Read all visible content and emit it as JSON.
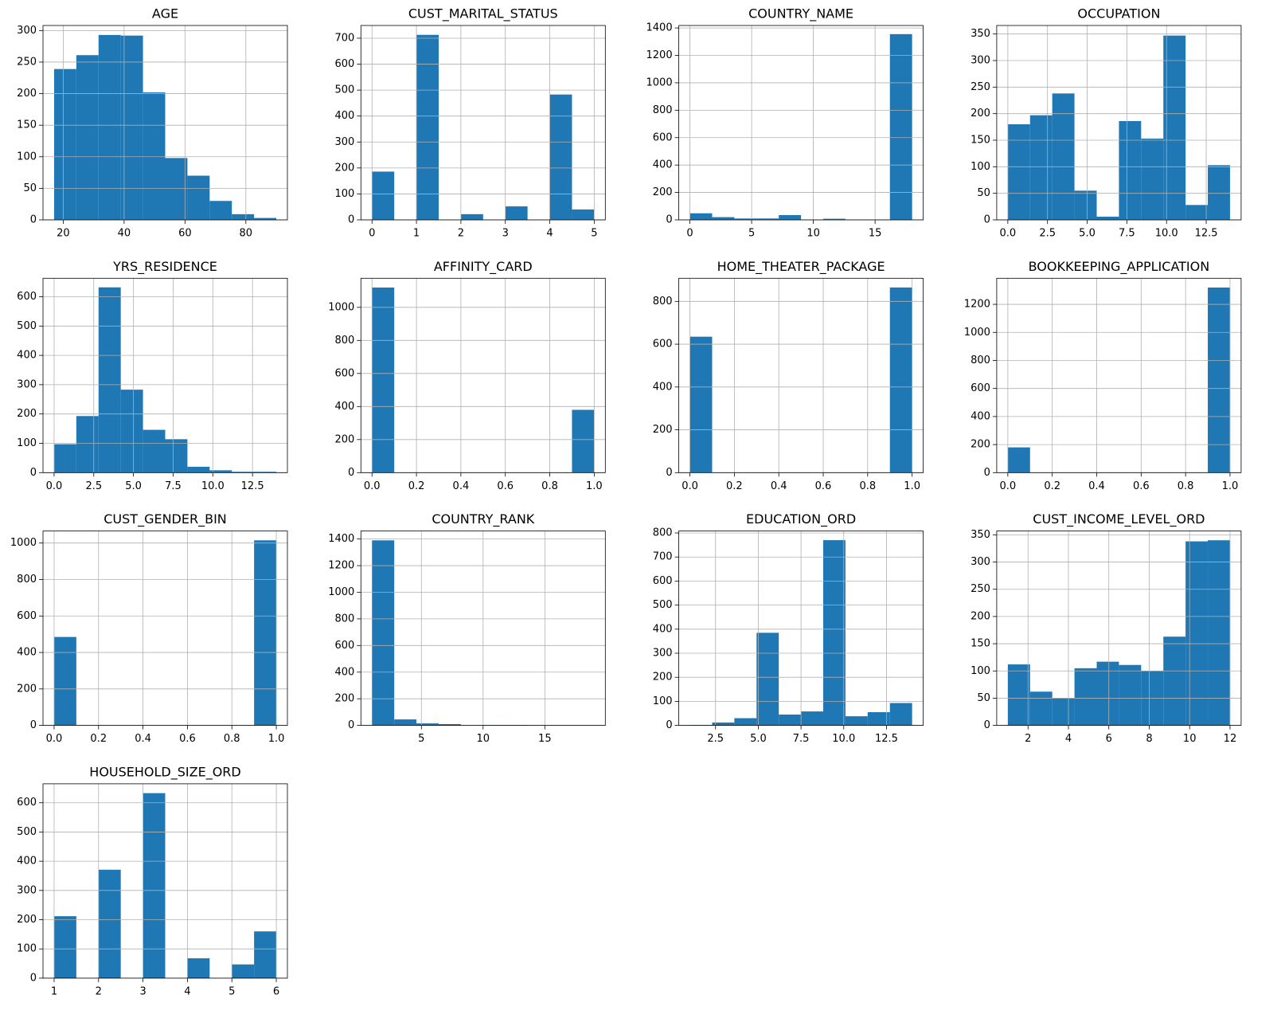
{
  "chart_data": [
    {
      "type": "histogram",
      "title": "AGE",
      "bins": [
        17,
        24.3,
        31.6,
        38.9,
        46.2,
        53.5,
        60.8,
        68.1,
        75.4,
        82.7,
        90
      ],
      "counts": [
        239,
        261,
        293,
        292,
        202,
        98,
        70,
        30,
        9,
        3
      ],
      "xlim": [
        13.35,
        93.65
      ],
      "ylim": [
        0,
        308
      ],
      "xticks": [
        20,
        40,
        60,
        80
      ],
      "yticks": [
        0,
        50,
        100,
        150,
        200,
        250,
        300
      ],
      "grid": true,
      "color": "#1f77b4"
    },
    {
      "type": "histogram",
      "title": "CUST_MARITAL_STATUS",
      "bins": [
        0,
        0.5,
        1,
        1.5,
        2,
        2.5,
        3,
        3.5,
        4,
        4.5,
        5
      ],
      "counts": [
        186,
        0,
        713,
        0,
        22,
        0,
        52,
        0,
        483,
        40
      ],
      "xlim": [
        -0.25,
        5.25
      ],
      "ylim": [
        0,
        749
      ],
      "xticks": [
        0,
        1,
        2,
        3,
        4,
        5
      ],
      "yticks": [
        0,
        100,
        200,
        300,
        400,
        500,
        600,
        700
      ],
      "grid": true,
      "color": "#1f77b4"
    },
    {
      "type": "histogram",
      "title": "COUNTRY_NAME",
      "bins": [
        0,
        1.8,
        3.6,
        5.4,
        7.2,
        9,
        10.8,
        12.6,
        14.4,
        16.2,
        18
      ],
      "counts": [
        48,
        20,
        10,
        10,
        35,
        3,
        8,
        3,
        3,
        1355
      ],
      "xlim": [
        -0.9,
        18.9
      ],
      "ylim": [
        0,
        1418
      ],
      "xticks": [
        0,
        5,
        10,
        15
      ],
      "yticks": [
        0,
        200,
        400,
        600,
        800,
        1000,
        1200,
        1400
      ],
      "grid": true,
      "color": "#1f77b4"
    },
    {
      "type": "histogram",
      "title": "OCCUPATION",
      "bins": [
        0,
        1.4,
        2.8,
        4.2,
        5.6,
        7,
        8.4,
        9.8,
        11.2,
        12.6,
        14
      ],
      "counts": [
        180,
        197,
        238,
        55,
        6,
        186,
        153,
        347,
        28,
        103
      ],
      "xlim": [
        -0.7,
        14.7
      ],
      "ylim": [
        0,
        366
      ],
      "xticks": [
        {
          "value": 0,
          "label": "0.0"
        },
        2.5,
        {
          "value": 5,
          "label": "5.0"
        },
        7.5,
        {
          "value": 10,
          "label": "10.0"
        },
        12.5
      ],
      "yticks": [
        0,
        50,
        100,
        150,
        200,
        250,
        300,
        350
      ],
      "grid": true,
      "color": "#1f77b4"
    },
    {
      "type": "histogram",
      "title": "YRS_RESIDENCE",
      "bins": [
        0,
        1.4,
        2.8,
        4.2,
        5.6,
        7,
        8.4,
        9.8,
        11.2,
        12.6,
        14
      ],
      "counts": [
        97,
        193,
        632,
        283,
        146,
        114,
        20,
        8,
        3,
        3
      ],
      "xlim": [
        -0.7,
        14.7
      ],
      "ylim": [
        0,
        663
      ],
      "xticks": [
        {
          "value": 0,
          "label": "0.0"
        },
        2.5,
        {
          "value": 5,
          "label": "5.0"
        },
        7.5,
        {
          "value": 10,
          "label": "10.0"
        },
        12.5
      ],
      "yticks": [
        0,
        100,
        200,
        300,
        400,
        500,
        600
      ],
      "grid": true,
      "color": "#1f77b4"
    },
    {
      "type": "histogram",
      "title": "AFFINITY_CARD",
      "bins": [
        0,
        0.1,
        0.2,
        0.3,
        0.4,
        0.5,
        0.6,
        0.7,
        0.8,
        0.9,
        1
      ],
      "counts": [
        1120,
        0,
        0,
        0,
        0,
        0,
        0,
        0,
        0,
        380
      ],
      "xlim": [
        -0.05,
        1.05
      ],
      "ylim": [
        0,
        1176
      ],
      "xticks": [
        {
          "value": 0,
          "label": "0.0"
        },
        0.2,
        0.4,
        0.6,
        0.8,
        {
          "value": 1,
          "label": "1.0"
        }
      ],
      "yticks": [
        0,
        200,
        400,
        600,
        800,
        1000
      ],
      "grid": true,
      "color": "#1f77b4"
    },
    {
      "type": "histogram",
      "title": "HOME_THEATER_PACKAGE",
      "bins": [
        0,
        0.1,
        0.2,
        0.3,
        0.4,
        0.5,
        0.6,
        0.7,
        0.8,
        0.9,
        1
      ],
      "counts": [
        635,
        0,
        0,
        0,
        0,
        0,
        0,
        0,
        0,
        865
      ],
      "xlim": [
        -0.05,
        1.05
      ],
      "ylim": [
        0,
        908
      ],
      "xticks": [
        {
          "value": 0,
          "label": "0.0"
        },
        0.2,
        0.4,
        0.6,
        0.8,
        {
          "value": 1,
          "label": "1.0"
        }
      ],
      "yticks": [
        0,
        200,
        400,
        600,
        800
      ],
      "grid": true,
      "color": "#1f77b4"
    },
    {
      "type": "histogram",
      "title": "BOOKKEEPING_APPLICATION",
      "bins": [
        0,
        0.1,
        0.2,
        0.3,
        0.4,
        0.5,
        0.6,
        0.7,
        0.8,
        0.9,
        1
      ],
      "counts": [
        180,
        0,
        0,
        0,
        0,
        0,
        0,
        0,
        0,
        1320
      ],
      "xlim": [
        -0.05,
        1.05
      ],
      "ylim": [
        0,
        1386
      ],
      "xticks": [
        {
          "value": 0,
          "label": "0.0"
        },
        0.2,
        0.4,
        0.6,
        0.8,
        {
          "value": 1,
          "label": "1.0"
        }
      ],
      "yticks": [
        0,
        200,
        400,
        600,
        800,
        1000,
        1200
      ],
      "grid": true,
      "color": "#1f77b4"
    },
    {
      "type": "histogram",
      "title": "CUST_GENDER_BIN",
      "bins": [
        0,
        0.1,
        0.2,
        0.3,
        0.4,
        0.5,
        0.6,
        0.7,
        0.8,
        0.9,
        1
      ],
      "counts": [
        485,
        0,
        0,
        0,
        0,
        0,
        0,
        0,
        0,
        1015
      ],
      "xlim": [
        -0.05,
        1.05
      ],
      "ylim": [
        0,
        1066
      ],
      "xticks": [
        {
          "value": 0,
          "label": "0.0"
        },
        0.2,
        0.4,
        0.6,
        0.8,
        {
          "value": 1,
          "label": "1.0"
        }
      ],
      "yticks": [
        0,
        200,
        400,
        600,
        800,
        1000
      ],
      "grid": true,
      "color": "#1f77b4"
    },
    {
      "type": "histogram",
      "title": "COUNTRY_RANK",
      "bins": [
        1,
        2.8,
        4.6,
        6.4,
        8.2,
        10,
        11.8,
        13.6,
        15.4,
        17.2,
        19
      ],
      "counts": [
        1390,
        45,
        15,
        10,
        0,
        3,
        3,
        0,
        0,
        1
      ],
      "xlim": [
        0.1,
        19.9
      ],
      "ylim": [
        0,
        1460
      ],
      "xticks": [
        5,
        10,
        15
      ],
      "yticks": [
        0,
        200,
        400,
        600,
        800,
        1000,
        1200,
        1400
      ],
      "grid": true,
      "color": "#1f77b4"
    },
    {
      "type": "histogram",
      "title": "EDUCATION_ORD",
      "bins": [
        1,
        2.3,
        3.6,
        4.9,
        6.2,
        7.5,
        8.8,
        10.1,
        11.4,
        12.7,
        14
      ],
      "counts": [
        2,
        12,
        30,
        385,
        45,
        58,
        770,
        38,
        55,
        93
      ],
      "xlim": [
        0.35,
        14.65
      ],
      "ylim": [
        0,
        808
      ],
      "xticks": [
        2.5,
        {
          "value": 5,
          "label": "5.0"
        },
        7.5,
        {
          "value": 10,
          "label": "10.0"
        },
        12.5
      ],
      "yticks": [
        0,
        100,
        200,
        300,
        400,
        500,
        600,
        700,
        800
      ],
      "grid": true,
      "color": "#1f77b4"
    },
    {
      "type": "histogram",
      "title": "CUST_INCOME_LEVEL_ORD",
      "bins": [
        1,
        2.1,
        3.2,
        4.3,
        5.4,
        6.5,
        7.6,
        8.7,
        9.8,
        10.9,
        12
      ],
      "counts": [
        112,
        62,
        50,
        105,
        117,
        111,
        100,
        163,
        338,
        340
      ],
      "xlim": [
        0.45,
        12.55
      ],
      "ylim": [
        0,
        357
      ],
      "xticks": [
        2,
        4,
        6,
        8,
        10,
        12
      ],
      "yticks": [
        0,
        50,
        100,
        150,
        200,
        250,
        300,
        350
      ],
      "grid": true,
      "color": "#1f77b4"
    },
    {
      "type": "histogram",
      "title": "HOUSEHOLD_SIZE_ORD",
      "bins": [
        1,
        1.5,
        2,
        2.5,
        3,
        3.5,
        4,
        4.5,
        5,
        5.5,
        6
      ],
      "counts": [
        212,
        0,
        371,
        0,
        633,
        0,
        68,
        0,
        47,
        160
      ],
      "xlim": [
        0.75,
        6.25
      ],
      "ylim": [
        0,
        665
      ],
      "xticks": [
        1,
        2,
        3,
        4,
        5,
        6
      ],
      "yticks": [
        0,
        100,
        200,
        300,
        400,
        500,
        600
      ],
      "grid": true,
      "color": "#1f77b4"
    }
  ]
}
